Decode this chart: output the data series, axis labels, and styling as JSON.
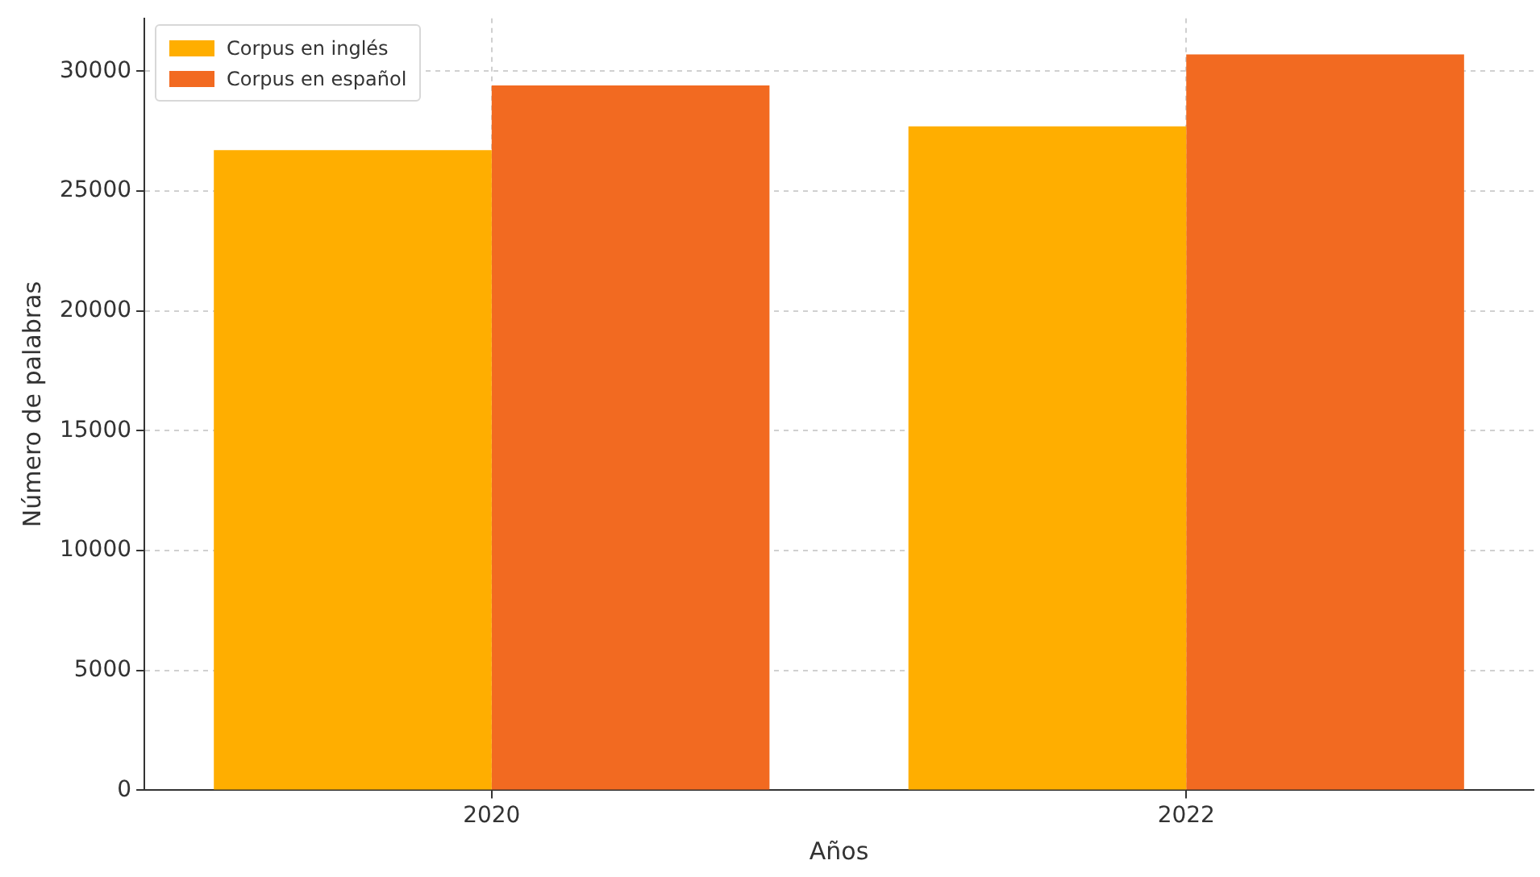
{
  "chart_data": {
    "type": "bar",
    "xlabel": "Años",
    "ylabel": "Número de palabras",
    "categories": [
      "2020",
      "2022"
    ],
    "series": [
      {
        "name": "Corpus en inglés",
        "color": "#ffae00",
        "values": [
          26700,
          27700
        ]
      },
      {
        "name": "Corpus en español",
        "color": "#f26a21",
        "values": [
          29400,
          30700
        ]
      }
    ],
    "ylim": [
      0,
      32200
    ],
    "yticks": [
      0,
      5000,
      10000,
      15000,
      20000,
      25000,
      30000
    ],
    "grid": true,
    "legend": "top left"
  }
}
